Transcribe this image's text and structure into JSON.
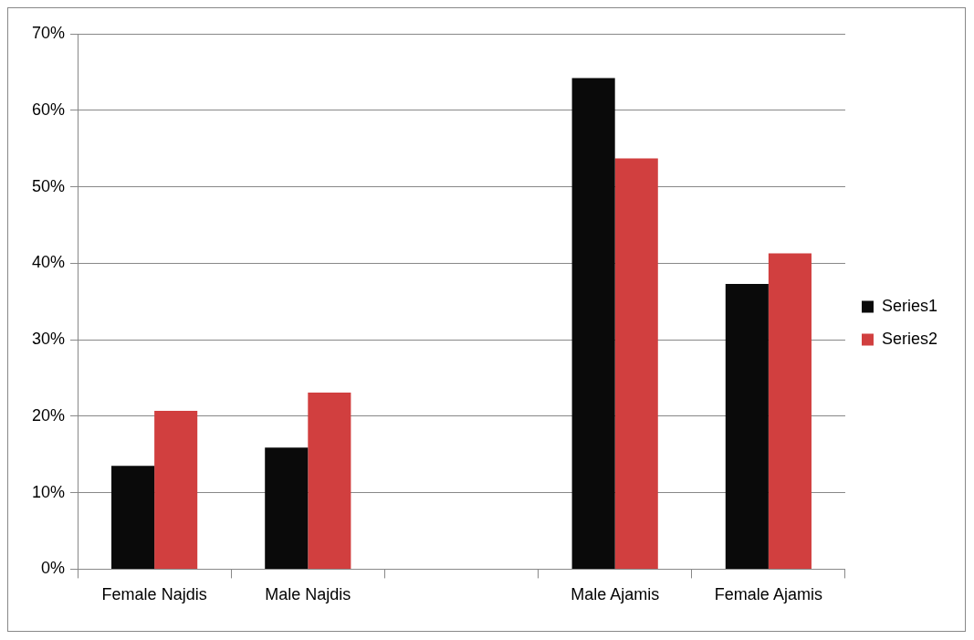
{
  "chart_data": {
    "type": "bar",
    "categories": [
      "Female Najdis",
      "Male Najdis",
      null,
      "Male Ajamis",
      "Female Ajamis"
    ],
    "series": [
      {
        "name": "Series1",
        "color": "#0a0a0a",
        "values": [
          13.5,
          15.9,
          null,
          64.2,
          37.3
        ]
      },
      {
        "name": "Series2",
        "color": "#d13f3f",
        "values": [
          20.7,
          23.1,
          null,
          53.7,
          41.3
        ]
      }
    ],
    "ylim": [
      0,
      70
    ],
    "yticks": [
      {
        "value": 0,
        "label": "0%"
      },
      {
        "value": 10,
        "label": "10%"
      },
      {
        "value": 20,
        "label": "20%"
      },
      {
        "value": 30,
        "label": "30%"
      },
      {
        "value": 40,
        "label": "40%"
      },
      {
        "value": 50,
        "label": "50%"
      },
      {
        "value": 60,
        "label": "60%"
      },
      {
        "value": 70,
        "label": "70%"
      }
    ],
    "grid": "y",
    "legend": "right"
  }
}
